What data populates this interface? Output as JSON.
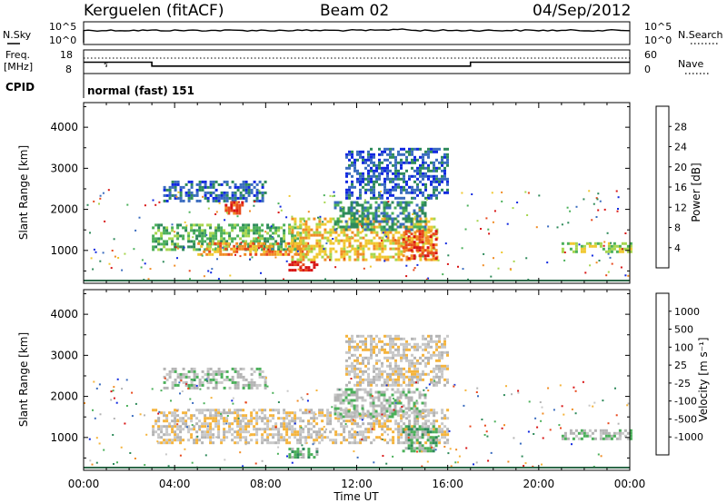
{
  "header": {
    "station": "Kerguelen (fitACF)",
    "beam": "Beam 02",
    "date": "04/Sep/2012"
  },
  "status_panels": {
    "nsky": {
      "left_label": "N.Sky",
      "left_ticks": [
        "10^5",
        "10^0"
      ],
      "right_label": "N.Search",
      "right_ticks": [
        "10^5",
        "10^0"
      ]
    },
    "freq": {
      "left_label_line1": "Freq.",
      "left_label_line2": "[MHz]",
      "left_ticks": [
        "18",
        "8"
      ],
      "right_label": "Nave",
      "right_ticks": [
        "60",
        "0"
      ]
    },
    "cpid": {
      "label": "CPID",
      "value": "normal (fast) 151"
    }
  },
  "colors": {
    "power_scale": [
      "#1028e0",
      "#3a6cbf",
      "#2e8a5a",
      "#4bb05a",
      "#a6d64e",
      "#f0c830",
      "#f08c24",
      "#e8481c",
      "#d81414"
    ],
    "velocity_scale": [
      "#d81414",
      "#e8481c",
      "#f08c24",
      "#f5b43c",
      "#c8c8c8",
      "#b4b4b4",
      "#4bb05a",
      "#2e8a5a",
      "#3a6cbf",
      "#1028e0"
    ]
  },
  "chart_data": [
    {
      "type": "line",
      "name": "N.Sky / N.Search",
      "x_ticks": [
        "00:00",
        "04:00",
        "08:00",
        "12:00",
        "16:00",
        "20:00",
        "00:00"
      ]
    },
    {
      "type": "line",
      "name": "Frequency / Nave",
      "x": [
        0,
        3,
        3,
        17,
        17,
        24
      ],
      "frequency_mhz": [
        13,
        13,
        10.5,
        10.5,
        13,
        13
      ]
    },
    {
      "type": "heatmap",
      "name": "power",
      "xlabel": "",
      "ylabel": "Slant Range [km]",
      "y_ticks": [
        "1000",
        "2000",
        "3000",
        "4000"
      ],
      "x_ticks": [
        "00:00",
        "04:00",
        "08:00",
        "12:00",
        "16:00",
        "20:00",
        "00:00"
      ],
      "xlim": [
        0,
        24
      ],
      "ylim": [
        200,
        4600
      ],
      "colorbar_label": "Power [dB]",
      "colorbar_ticks": [
        "4",
        "8",
        "12",
        "16",
        "20",
        "24",
        "28"
      ],
      "echo_regions": [
        {
          "t0": 3.0,
          "t1": 9.5,
          "r0": 1050,
          "r1": 1650,
          "level": 3
        },
        {
          "t0": 5.0,
          "t1": 10.0,
          "r0": 900,
          "r1": 1200,
          "level": 6
        },
        {
          "t0": 9.0,
          "t1": 10.2,
          "r0": 500,
          "r1": 750,
          "level": 8
        },
        {
          "t0": 9.0,
          "t1": 15.5,
          "r0": 800,
          "r1": 1800,
          "level": 5
        },
        {
          "t0": 11.0,
          "t1": 15.0,
          "r0": 1500,
          "r1": 2200,
          "level": 2
        },
        {
          "t0": 3.5,
          "t1": 8.0,
          "r0": 2200,
          "r1": 2700,
          "level": 1
        },
        {
          "t0": 6.2,
          "t1": 7.0,
          "r0": 1900,
          "r1": 2200,
          "level": 7
        },
        {
          "t0": 11.5,
          "t1": 16.0,
          "r0": 2300,
          "r1": 3500,
          "level": 1
        },
        {
          "t0": 14.0,
          "t1": 15.5,
          "r0": 800,
          "r1": 1500,
          "level": 7
        },
        {
          "t0": 21.0,
          "t1": 24.0,
          "r0": 950,
          "r1": 1200,
          "level": 4
        }
      ]
    },
    {
      "type": "heatmap",
      "name": "velocity",
      "xlabel": "Time UT",
      "ylabel": "Slant Range [km]",
      "y_ticks": [
        "1000",
        "2000",
        "3000",
        "4000"
      ],
      "x_ticks": [
        "00:00",
        "04:00",
        "08:00",
        "12:00",
        "16:00",
        "20:00",
        "00:00"
      ],
      "xlim": [
        0,
        24
      ],
      "ylim": [
        200,
        4600
      ],
      "colorbar_label": "Velocity [m s⁻¹]",
      "colorbar_ticks": [
        "1000",
        "500",
        "100",
        "25",
        "-25",
        "-100",
        "-500",
        "-1000"
      ],
      "echo_regions": [
        {
          "t0": 3.0,
          "t1": 16.0,
          "r0": 900,
          "r1": 1700,
          "level": 4
        },
        {
          "t0": 9.0,
          "t1": 10.2,
          "r0": 500,
          "r1": 750,
          "level": 6
        },
        {
          "t0": 11.0,
          "t1": 15.0,
          "r0": 1500,
          "r1": 2200,
          "level": 5
        },
        {
          "t0": 3.5,
          "t1": 8.0,
          "r0": 2200,
          "r1": 2700,
          "level": 5
        },
        {
          "t0": 11.5,
          "t1": 16.0,
          "r0": 2300,
          "r1": 3500,
          "level": 4
        },
        {
          "t0": 14.0,
          "t1": 15.5,
          "r0": 700,
          "r1": 1300,
          "level": 6
        },
        {
          "t0": 21.0,
          "t1": 24.0,
          "r0": 950,
          "r1": 1200,
          "level": 5
        }
      ]
    }
  ]
}
